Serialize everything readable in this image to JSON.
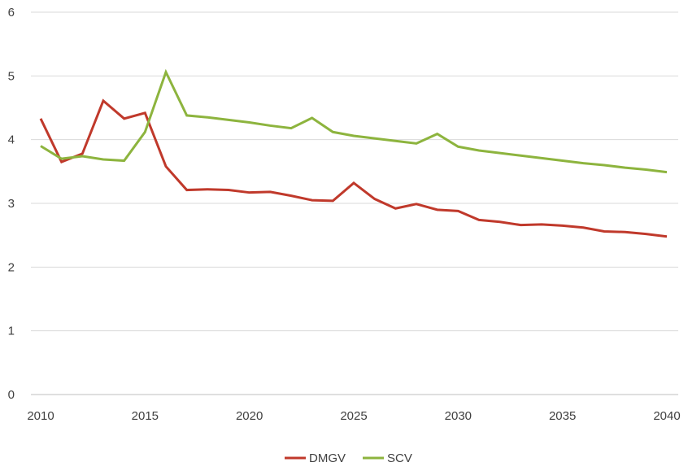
{
  "chart_data": {
    "type": "line",
    "title": "",
    "xlabel": "",
    "ylabel": "",
    "xlim": [
      2010,
      2040
    ],
    "ylim": [
      0,
      6
    ],
    "x_ticks": [
      2010,
      2015,
      2020,
      2025,
      2030,
      2035,
      2040
    ],
    "y_ticks": [
      0,
      1,
      2,
      3,
      4,
      5,
      6
    ],
    "grid": true,
    "legend_position": "bottom",
    "x": [
      2010,
      2011,
      2012,
      2013,
      2014,
      2015,
      2016,
      2017,
      2018,
      2019,
      2020,
      2021,
      2022,
      2023,
      2024,
      2025,
      2026,
      2027,
      2028,
      2029,
      2030,
      2031,
      2032,
      2033,
      2034,
      2035,
      2036,
      2037,
      2038,
      2039,
      2040
    ],
    "series": [
      {
        "name": "DMGV",
        "color": "#c0392b",
        "values": [
          4.33,
          3.65,
          3.78,
          4.61,
          4.33,
          4.42,
          3.58,
          3.21,
          3.22,
          3.21,
          3.17,
          3.18,
          3.12,
          3.05,
          3.04,
          3.32,
          3.07,
          2.92,
          2.99,
          2.9,
          2.88,
          2.74,
          2.71,
          2.66,
          2.67,
          2.65,
          2.62,
          2.56,
          2.55,
          2.52,
          2.48
        ]
      },
      {
        "name": "SCV",
        "color": "#8db43e",
        "values": [
          3.9,
          3.7,
          3.74,
          3.69,
          3.67,
          4.12,
          5.06,
          4.38,
          4.35,
          4.31,
          4.27,
          4.22,
          4.18,
          4.34,
          4.12,
          4.06,
          4.02,
          3.98,
          3.94,
          4.09,
          3.89,
          3.83,
          3.79,
          3.75,
          3.71,
          3.67,
          3.63,
          3.6,
          3.56,
          3.53,
          3.49
        ]
      }
    ]
  }
}
